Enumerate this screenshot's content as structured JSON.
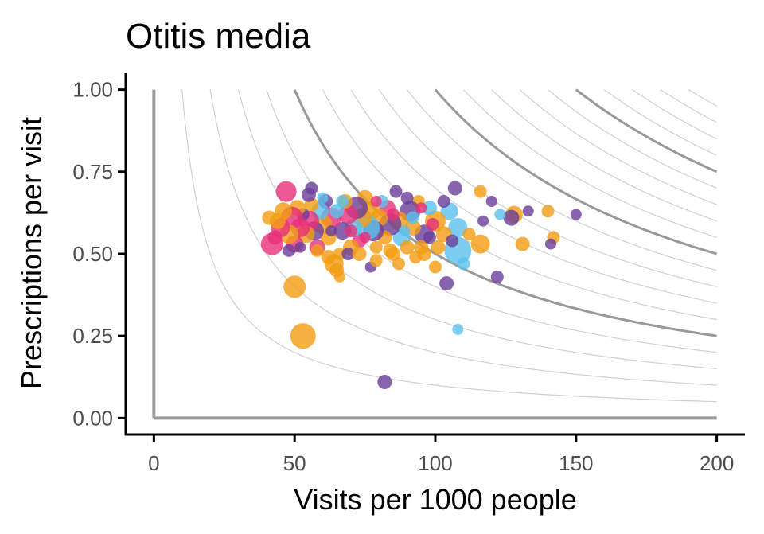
{
  "chart_data": {
    "type": "scatter",
    "title": "Otitis media",
    "xlabel": "Visits per 1000 people",
    "ylabel": "Prescriptions per visit",
    "xlim": [
      -10,
      210
    ],
    "ylim": [
      -0.05,
      1.05
    ],
    "x_ticks": [
      0,
      50,
      100,
      150,
      200
    ],
    "x_tick_labels": [
      "0",
      "50",
      "100",
      "150",
      "200"
    ],
    "y_ticks": [
      0,
      0.25,
      0.5,
      0.75,
      1
    ],
    "y_tick_labels": [
      "0.00",
      "0.25",
      "0.50",
      "0.75",
      "1.00"
    ],
    "grid": false,
    "legend": "none",
    "isoquants": {
      "description": "contours of constant prescriptions per 1000 people (x*y)",
      "minor_levels": [
        10,
        20,
        30,
        40,
        60,
        70,
        80,
        90,
        110,
        120,
        130,
        140,
        160,
        170,
        180,
        190
      ],
      "major_levels": [
        50,
        100,
        150,
        200
      ],
      "minor_color": "#d0d0d0",
      "major_color": "#999999"
    },
    "reference_axes_color": "#999999",
    "colors": {
      "purple": "#6a3d9a",
      "orange": "#f39c12",
      "pink": "#e7307a",
      "lightblue": "#5bc0eb"
    },
    "points": [
      {
        "x": 82,
        "y": 0.11,
        "s": 9,
        "c": "purple"
      },
      {
        "x": 53,
        "y": 0.25,
        "s": 16,
        "c": "orange"
      },
      {
        "x": 50,
        "y": 0.4,
        "s": 14,
        "c": "orange"
      },
      {
        "x": 108,
        "y": 0.27,
        "s": 7,
        "c": "lightblue"
      },
      {
        "x": 122,
        "y": 0.43,
        "s": 8,
        "c": "purple"
      },
      {
        "x": 104,
        "y": 0.41,
        "s": 9,
        "c": "purple"
      },
      {
        "x": 100,
        "y": 0.46,
        "s": 8,
        "c": "orange"
      },
      {
        "x": 150,
        "y": 0.62,
        "s": 7,
        "c": "purple"
      },
      {
        "x": 142,
        "y": 0.55,
        "s": 8,
        "c": "orange"
      },
      {
        "x": 141,
        "y": 0.53,
        "s": 7,
        "c": "purple"
      },
      {
        "x": 140,
        "y": 0.63,
        "s": 8,
        "c": "orange"
      },
      {
        "x": 133,
        "y": 0.63,
        "s": 7,
        "c": "purple"
      },
      {
        "x": 131,
        "y": 0.53,
        "s": 9,
        "c": "orange"
      },
      {
        "x": 128,
        "y": 0.62,
        "s": 11,
        "c": "orange"
      },
      {
        "x": 127,
        "y": 0.61,
        "s": 10,
        "c": "purple"
      },
      {
        "x": 123,
        "y": 0.62,
        "s": 7,
        "c": "lightblue"
      },
      {
        "x": 120,
        "y": 0.66,
        "s": 7,
        "c": "purple"
      },
      {
        "x": 116,
        "y": 0.69,
        "s": 8,
        "c": "orange"
      },
      {
        "x": 117,
        "y": 0.6,
        "s": 7,
        "c": "purple"
      },
      {
        "x": 116,
        "y": 0.53,
        "s": 12,
        "c": "orange"
      },
      {
        "x": 108,
        "y": 0.51,
        "s": 17,
        "c": "lightblue"
      },
      {
        "x": 108,
        "y": 0.58,
        "s": 12,
        "c": "lightblue"
      },
      {
        "x": 107,
        "y": 0.7,
        "s": 9,
        "c": "purple"
      },
      {
        "x": 105,
        "y": 0.63,
        "s": 11,
        "c": "lightblue"
      },
      {
        "x": 103,
        "y": 0.56,
        "s": 10,
        "c": "orange"
      },
      {
        "x": 100,
        "y": 0.6,
        "s": 13,
        "c": "orange"
      },
      {
        "x": 98,
        "y": 0.64,
        "s": 9,
        "c": "lightblue"
      },
      {
        "x": 96,
        "y": 0.56,
        "s": 12,
        "c": "purple"
      },
      {
        "x": 95,
        "y": 0.52,
        "s": 9,
        "c": "orange"
      },
      {
        "x": 94,
        "y": 0.66,
        "s": 8,
        "c": "orange"
      },
      {
        "x": 92,
        "y": 0.58,
        "s": 10,
        "c": "orange"
      },
      {
        "x": 91,
        "y": 0.63,
        "s": 13,
        "c": "purple"
      },
      {
        "x": 90,
        "y": 0.67,
        "s": 8,
        "c": "purple"
      },
      {
        "x": 88,
        "y": 0.55,
        "s": 11,
        "c": "lightblue"
      },
      {
        "x": 87,
        "y": 0.6,
        "s": 12,
        "c": "orange"
      },
      {
        "x": 86,
        "y": 0.69,
        "s": 8,
        "c": "purple"
      },
      {
        "x": 85,
        "y": 0.5,
        "s": 9,
        "c": "orange"
      },
      {
        "x": 84,
        "y": 0.59,
        "s": 14,
        "c": "purple"
      },
      {
        "x": 83,
        "y": 0.64,
        "s": 10,
        "c": "pink"
      },
      {
        "x": 82,
        "y": 0.55,
        "s": 9,
        "c": "orange"
      },
      {
        "x": 81,
        "y": 0.66,
        "s": 8,
        "c": "lightblue"
      },
      {
        "x": 80,
        "y": 0.61,
        "s": 11,
        "c": "orange"
      },
      {
        "x": 79,
        "y": 0.52,
        "s": 8,
        "c": "orange"
      },
      {
        "x": 78,
        "y": 0.57,
        "s": 13,
        "c": "purple"
      },
      {
        "x": 77,
        "y": 0.63,
        "s": 12,
        "c": "orange"
      },
      {
        "x": 76,
        "y": 0.58,
        "s": 15,
        "c": "lightblue"
      },
      {
        "x": 75,
        "y": 0.67,
        "s": 10,
        "c": "orange"
      },
      {
        "x": 74,
        "y": 0.61,
        "s": 12,
        "c": "orange"
      },
      {
        "x": 73,
        "y": 0.54,
        "s": 9,
        "c": "pink"
      },
      {
        "x": 72,
        "y": 0.64,
        "s": 14,
        "c": "purple"
      },
      {
        "x": 71,
        "y": 0.58,
        "s": 11,
        "c": "lightblue"
      },
      {
        "x": 70,
        "y": 0.52,
        "s": 10,
        "c": "orange"
      },
      {
        "x": 69,
        "y": 0.62,
        "s": 12,
        "c": "pink"
      },
      {
        "x": 68,
        "y": 0.66,
        "s": 9,
        "c": "orange"
      },
      {
        "x": 67,
        "y": 0.57,
        "s": 11,
        "c": "purple"
      },
      {
        "x": 66,
        "y": 0.5,
        "s": 8,
        "c": "orange"
      },
      {
        "x": 65,
        "y": 0.45,
        "s": 9,
        "c": "orange"
      },
      {
        "x": 64,
        "y": 0.47,
        "s": 12,
        "c": "orange"
      },
      {
        "x": 63,
        "y": 0.61,
        "s": 13,
        "c": "pink"
      },
      {
        "x": 62,
        "y": 0.55,
        "s": 10,
        "c": "orange"
      },
      {
        "x": 61,
        "y": 0.66,
        "s": 9,
        "c": "purple"
      },
      {
        "x": 60,
        "y": 0.59,
        "s": 12,
        "c": "orange"
      },
      {
        "x": 59,
        "y": 0.63,
        "s": 11,
        "c": "lightblue"
      },
      {
        "x": 58,
        "y": 0.52,
        "s": 10,
        "c": "pink"
      },
      {
        "x": 57,
        "y": 0.57,
        "s": 12,
        "c": "purple"
      },
      {
        "x": 56,
        "y": 0.65,
        "s": 9,
        "c": "orange"
      },
      {
        "x": 55,
        "y": 0.6,
        "s": 13,
        "c": "pink"
      },
      {
        "x": 54,
        "y": 0.56,
        "s": 11,
        "c": "orange"
      },
      {
        "x": 53,
        "y": 0.62,
        "s": 8,
        "c": "purple"
      },
      {
        "x": 52,
        "y": 0.58,
        "s": 12,
        "c": "pink"
      },
      {
        "x": 51,
        "y": 0.64,
        "s": 10,
        "c": "orange"
      },
      {
        "x": 50,
        "y": 0.53,
        "s": 11,
        "c": "pink"
      },
      {
        "x": 49,
        "y": 0.61,
        "s": 14,
        "c": "pink"
      },
      {
        "x": 48,
        "y": 0.56,
        "s": 12,
        "c": "orange"
      },
      {
        "x": 47,
        "y": 0.69,
        "s": 13,
        "c": "pink"
      },
      {
        "x": 46,
        "y": 0.63,
        "s": 11,
        "c": "orange"
      },
      {
        "x": 45,
        "y": 0.58,
        "s": 12,
        "c": "pink"
      },
      {
        "x": 44,
        "y": 0.6,
        "s": 10,
        "c": "orange"
      },
      {
        "x": 43,
        "y": 0.55,
        "s": 9,
        "c": "pink"
      },
      {
        "x": 42,
        "y": 0.53,
        "s": 14,
        "c": "pink"
      },
      {
        "x": 41,
        "y": 0.61,
        "s": 9,
        "c": "orange"
      },
      {
        "x": 55,
        "y": 0.68,
        "s": 9,
        "c": "purple"
      },
      {
        "x": 56,
        "y": 0.7,
        "s": 8,
        "c": "purple"
      },
      {
        "x": 58,
        "y": 0.51,
        "s": 8,
        "c": "orange"
      },
      {
        "x": 62,
        "y": 0.49,
        "s": 9,
        "c": "orange"
      },
      {
        "x": 66,
        "y": 0.43,
        "s": 7,
        "c": "orange"
      },
      {
        "x": 69,
        "y": 0.5,
        "s": 8,
        "c": "purple"
      },
      {
        "x": 73,
        "y": 0.5,
        "s": 9,
        "c": "orange"
      },
      {
        "x": 77,
        "y": 0.46,
        "s": 7,
        "c": "purple"
      },
      {
        "x": 79,
        "y": 0.48,
        "s": 8,
        "c": "orange"
      },
      {
        "x": 84,
        "y": 0.51,
        "s": 9,
        "c": "orange"
      },
      {
        "x": 87,
        "y": 0.47,
        "s": 8,
        "c": "orange"
      },
      {
        "x": 90,
        "y": 0.52,
        "s": 9,
        "c": "orange"
      },
      {
        "x": 93,
        "y": 0.49,
        "s": 8,
        "c": "orange"
      },
      {
        "x": 96,
        "y": 0.5,
        "s": 9,
        "c": "orange"
      },
      {
        "x": 98,
        "y": 0.55,
        "s": 8,
        "c": "purple"
      },
      {
        "x": 101,
        "y": 0.52,
        "s": 9,
        "c": "orange"
      },
      {
        "x": 103,
        "y": 0.66,
        "s": 8,
        "c": "purple"
      },
      {
        "x": 106,
        "y": 0.54,
        "s": 8,
        "c": "purple"
      },
      {
        "x": 110,
        "y": 0.47,
        "s": 8,
        "c": "lightblue"
      },
      {
        "x": 112,
        "y": 0.56,
        "s": 8,
        "c": "orange"
      },
      {
        "x": 89,
        "y": 0.57,
        "s": 7,
        "c": "lightblue"
      },
      {
        "x": 92,
        "y": 0.61,
        "s": 8,
        "c": "lightblue"
      },
      {
        "x": 85,
        "y": 0.62,
        "s": 8,
        "c": "pink"
      },
      {
        "x": 79,
        "y": 0.66,
        "s": 7,
        "c": "pink"
      },
      {
        "x": 75,
        "y": 0.55,
        "s": 7,
        "c": "pink"
      },
      {
        "x": 70,
        "y": 0.57,
        "s": 8,
        "c": "pink"
      },
      {
        "x": 65,
        "y": 0.63,
        "s": 9,
        "c": "lightblue"
      },
      {
        "x": 60,
        "y": 0.67,
        "s": 7,
        "c": "lightblue"
      },
      {
        "x": 67,
        "y": 0.66,
        "s": 8,
        "c": "lightblue"
      },
      {
        "x": 63,
        "y": 0.57,
        "s": 7,
        "c": "purple"
      },
      {
        "x": 52,
        "y": 0.52,
        "s": 7,
        "c": "purple"
      },
      {
        "x": 48,
        "y": 0.51,
        "s": 8,
        "c": "purple"
      },
      {
        "x": 95,
        "y": 0.64,
        "s": 7,
        "c": "pink"
      },
      {
        "x": 99,
        "y": 0.59,
        "s": 8,
        "c": "pink"
      }
    ]
  }
}
